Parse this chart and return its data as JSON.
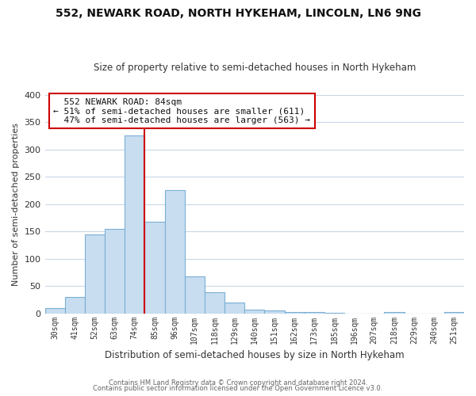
{
  "title": "552, NEWARK ROAD, NORTH HYKEHAM, LINCOLN, LN6 9NG",
  "subtitle": "Size of property relative to semi-detached houses in North Hykeham",
  "xlabel": "Distribution of semi-detached houses by size in North Hykeham",
  "ylabel": "Number of semi-detached properties",
  "categories": [
    "30sqm",
    "41sqm",
    "52sqm",
    "63sqm",
    "74sqm",
    "85sqm",
    "96sqm",
    "107sqm",
    "118sqm",
    "129sqm",
    "140sqm",
    "151sqm",
    "162sqm",
    "173sqm",
    "185sqm",
    "196sqm",
    "207sqm",
    "218sqm",
    "229sqm",
    "240sqm",
    "251sqm"
  ],
  "values": [
    10,
    30,
    144,
    155,
    325,
    168,
    225,
    68,
    38,
    20,
    7,
    5,
    2,
    2,
    1,
    0,
    0,
    3,
    0,
    0,
    2
  ],
  "highlight_index": 4,
  "bar_color": "#c8ddf0",
  "bar_edge_color": "#7aafd4",
  "highlight_line_color": "#cc0000",
  "highlight_label": "552 NEWARK ROAD: 84sqm",
  "smaller_pct": "51%",
  "smaller_count": "611",
  "larger_pct": "47%",
  "larger_count": "563",
  "ylim": [
    0,
    400
  ],
  "yticks": [
    0,
    50,
    100,
    150,
    200,
    250,
    300,
    350,
    400
  ],
  "background_color": "#ffffff",
  "grid_color": "#c8d8e8",
  "footer1": "Contains HM Land Registry data © Crown copyright and database right 2024.",
  "footer2": "Contains public sector information licensed under the Open Government Licence v3.0."
}
